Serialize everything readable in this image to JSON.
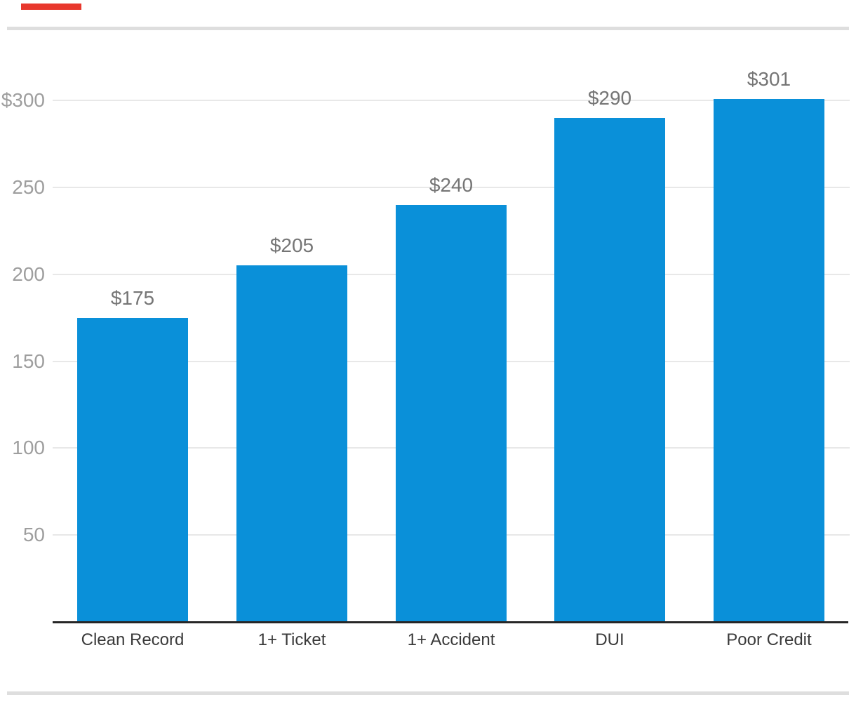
{
  "chart_data": {
    "type": "bar",
    "title": "",
    "xlabel": "",
    "ylabel": "",
    "categories": [
      "Clean Record",
      "1+ Ticket",
      "1+ Accident",
      "DUI",
      "Poor Credit"
    ],
    "values": [
      175,
      205,
      240,
      290,
      301
    ],
    "value_labels": [
      "$175",
      "$205",
      "$240",
      "$290",
      "$301"
    ],
    "y_ticks": [
      {
        "value": 300,
        "label": "$300"
      },
      {
        "value": 250,
        "label": "250"
      },
      {
        "value": 200,
        "label": "200"
      },
      {
        "value": 150,
        "label": "150"
      },
      {
        "value": 100,
        "label": "100"
      },
      {
        "value": 50,
        "label": "50"
      }
    ],
    "ylim": [
      0,
      335
    ],
    "grid": true,
    "legend": "none"
  },
  "colors": {
    "background": "#FFFFFF",
    "bar": "#0A90D9",
    "accent": "#E8382D",
    "rule": "#DEDEDE",
    "gridline": "#E8E8E8",
    "axis_line": "#262626",
    "y_tick_label": "#9E9E9E",
    "value_label": "#757575",
    "category_label": "#3A3A3A"
  }
}
